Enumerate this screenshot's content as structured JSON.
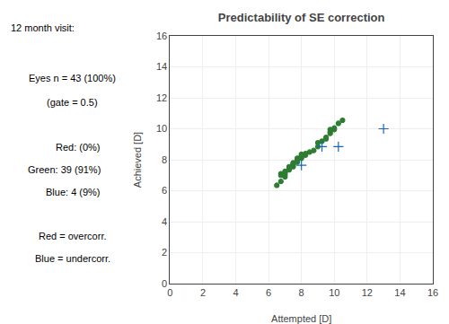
{
  "chart_data": {
    "type": "scatter",
    "title": "Predictability of SE correction",
    "x_label": "Attempted [D]",
    "y_label": "Achieved [D]",
    "xlim": [
      0,
      16
    ],
    "ylim": [
      0,
      16
    ],
    "xticks": [
      0,
      2,
      4,
      6,
      8,
      10,
      12,
      14,
      16
    ],
    "yticks": [
      0,
      2,
      4,
      6,
      8,
      10,
      12,
      14,
      16
    ],
    "grid": true,
    "series": [
      {
        "color": "#2e7d32",
        "marker": "dot",
        "x": [
          6.5,
          6.75,
          6.75,
          6.75,
          7.0,
          7.0,
          7.0,
          7.0,
          7.25,
          7.25,
          7.25,
          7.5,
          7.5,
          7.5,
          7.5,
          7.75,
          7.75,
          7.75,
          7.75,
          8.0,
          8.0,
          8.0,
          8.0,
          8.25,
          8.25,
          8.5,
          8.75,
          9.0,
          9.0,
          9.25,
          9.5,
          9.5,
          9.75,
          9.75,
          9.75,
          10.0,
          10.0,
          10.25,
          10.5
        ],
        "values": [
          6.35,
          6.6,
          7.0,
          7.1,
          6.9,
          7.05,
          7.15,
          7.25,
          7.35,
          7.45,
          7.55,
          7.55,
          7.7,
          7.75,
          7.8,
          7.85,
          7.9,
          8.0,
          8.1,
          8.1,
          8.2,
          8.25,
          8.35,
          8.3,
          8.4,
          8.5,
          8.6,
          8.85,
          9.1,
          9.2,
          9.35,
          9.45,
          9.7,
          9.8,
          9.95,
          9.95,
          10.05,
          10.35,
          10.55
        ]
      },
      {
        "color": "#1565c0",
        "marker": "plus",
        "x": [
          8.0,
          9.25,
          10.25,
          13.0
        ],
        "values": [
          7.65,
          8.85,
          8.85,
          10.0
        ]
      }
    ],
    "annotations": [
      "12 month visit:",
      "Eyes n = 43 (100%)",
      "(gate = 0.5)",
      "Red: (0%)",
      "Green: 39 (91%)",
      "Blue: 4 (9%)",
      "Red = overcorr.",
      "Blue = undercorr."
    ]
  }
}
